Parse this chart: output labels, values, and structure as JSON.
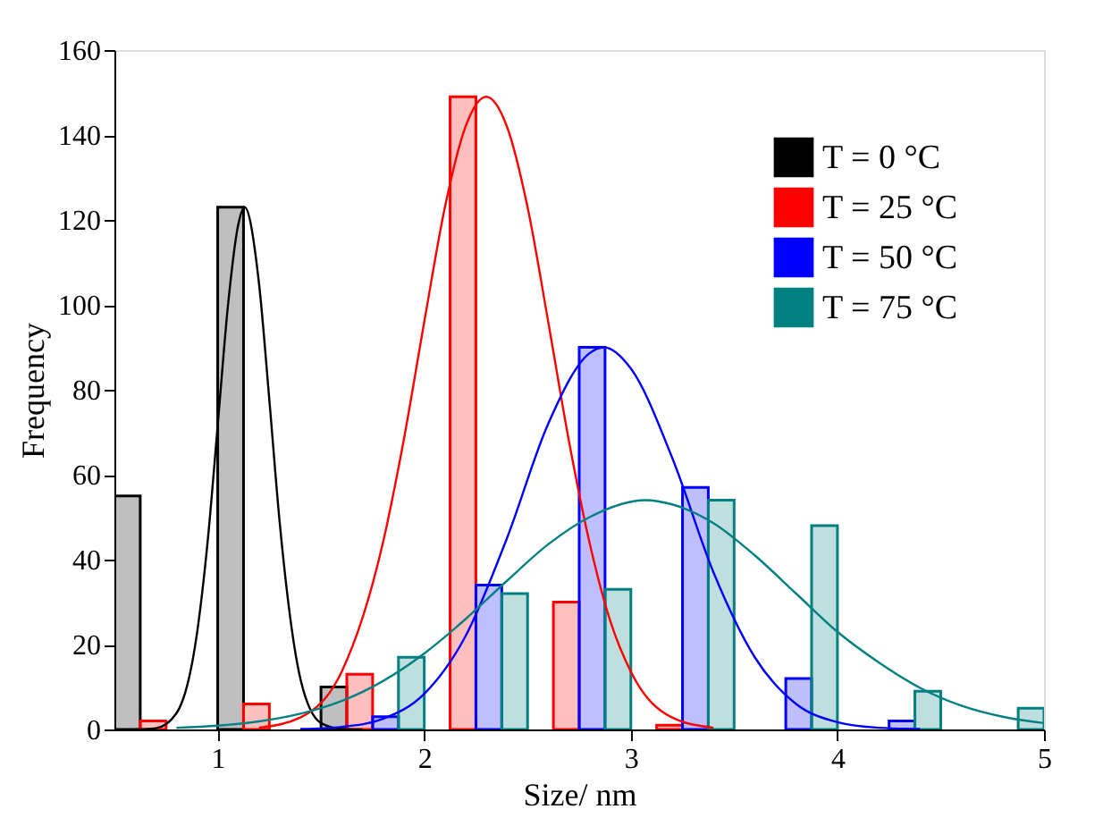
{
  "chart_data": {
    "type": "bar",
    "xlabel": "Size/ nm",
    "ylabel": "Frequency",
    "xlim": [
      0.5,
      5
    ],
    "xticks": [
      1,
      2,
      3,
      4,
      5
    ],
    "ylim": [
      0,
      160
    ],
    "yticks": [
      0,
      20,
      40,
      60,
      80,
      100,
      120,
      140,
      160
    ],
    "grid": false,
    "legend": "top right",
    "series": [
      {
        "name": "T = 0 °C",
        "color": "#000000",
        "x": [
          0.5625,
          1.0625,
          1.5625
        ],
        "values": [
          55,
          123,
          10
        ]
      },
      {
        "name": "T = 25 °C",
        "color": "#ff0000",
        "x": [
          0.6875,
          1.1875,
          1.6875,
          2.1875,
          2.6875,
          3.1875
        ],
        "values": [
          2,
          6,
          13,
          149,
          30,
          1
        ]
      },
      {
        "name": "T = 50 °C",
        "color": "#0000ff",
        "x": [
          1.8125,
          2.3125,
          2.8125,
          3.3125,
          3.8125,
          4.3125
        ],
        "values": [
          3,
          34,
          90,
          57,
          12,
          2
        ]
      },
      {
        "name": "T = 75 °C",
        "color": "#008080",
        "x": [
          1.9375,
          2.4375,
          2.9375,
          3.4375,
          3.9375,
          4.4375,
          4.9375
        ],
        "values": [
          17,
          32,
          33,
          54,
          48,
          9,
          5
        ]
      },
      {
        "type": "line",
        "color": "#000000",
        "x": [
          0.6,
          0.7,
          0.8,
          0.9,
          0.95,
          1.0,
          1.05,
          1.1,
          1.13,
          1.2,
          1.25,
          1.3,
          1.4,
          1.5,
          1.6,
          1.7
        ],
        "values": [
          0,
          0.3,
          3.8,
          22.7,
          43.6,
          71.6,
          100,
          119,
          123,
          105,
          77.6,
          48.8,
          12,
          1.5,
          0.1,
          0
        ]
      },
      {
        "type": "line",
        "color": "#ff0000",
        "x": [
          1.2,
          1.4,
          1.6,
          1.8,
          1.9,
          2.0,
          2.1,
          2.2,
          2.3,
          2.4,
          2.5,
          2.6,
          2.7,
          2.8,
          2.9,
          3.0,
          3.2,
          3.4
        ],
        "values": [
          0.4,
          2.8,
          13.6,
          44,
          68,
          96,
          123,
          142,
          149,
          142,
          123,
          96,
          68,
          44,
          25.6,
          13.6,
          2.8,
          0.4
        ]
      },
      {
        "type": "line",
        "color": "#0000ff",
        "x": [
          1.4,
          1.6,
          1.8,
          2.0,
          2.2,
          2.4,
          2.6,
          2.8,
          2.87,
          3.0,
          3.2,
          3.4,
          3.6,
          3.8,
          4.0,
          4.2,
          4.4
        ],
        "values": [
          0.1,
          0.6,
          2.5,
          8.4,
          22,
          45,
          72,
          88.6,
          90,
          85,
          64,
          37,
          17,
          6,
          1.7,
          0.4,
          0.1
        ]
      },
      {
        "type": "line",
        "color": "#008080",
        "x": [
          0.8,
          1.0,
          1.2,
          1.4,
          1.6,
          1.8,
          2.0,
          2.2,
          2.4,
          2.6,
          2.8,
          3.07,
          3.2,
          3.4,
          3.6,
          3.8,
          4.0,
          4.2,
          4.4,
          4.6,
          4.8,
          5.0
        ],
        "values": [
          0.4,
          0.9,
          1.9,
          3.7,
          6.7,
          11.4,
          17.9,
          26,
          35,
          43.6,
          50,
          54,
          53,
          48.6,
          41,
          32,
          23,
          15.8,
          9.8,
          5.6,
          3,
          1.5
        ]
      }
    ]
  }
}
